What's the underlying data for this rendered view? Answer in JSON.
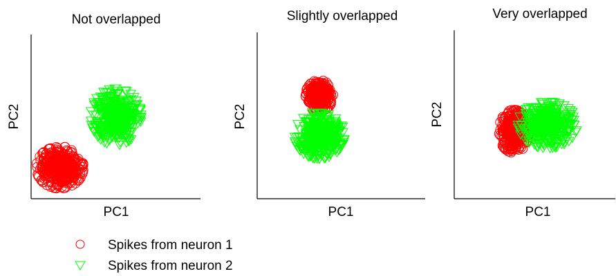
{
  "chart_data": [
    {
      "type": "scatter",
      "title": "Not overlapped",
      "xlabel": "PC1",
      "ylabel": "PC2",
      "xlim": [
        0,
        1
      ],
      "ylim": [
        0,
        1
      ],
      "series": [
        {
          "marker": "circle",
          "color": "#ff0000",
          "center": [
            0.17,
            0.19
          ],
          "spread": [
            0.06,
            0.055
          ],
          "n": 420
        },
        {
          "marker": "triangle-down",
          "color": "#00ff00",
          "center": [
            0.5,
            0.5
          ],
          "spread": [
            0.065,
            0.075
          ],
          "n": 420
        }
      ]
    },
    {
      "type": "scatter",
      "title": "Slightly overlapped",
      "xlabel": "PC1",
      "ylabel": "PC2",
      "xlim": [
        0,
        1
      ],
      "ylim": [
        0,
        1
      ],
      "series": [
        {
          "marker": "circle",
          "color": "#ff0000",
          "center": [
            0.37,
            0.62
          ],
          "spread": [
            0.035,
            0.04
          ],
          "n": 300
        },
        {
          "marker": "triangle-down",
          "color": "#00ff00",
          "center": [
            0.37,
            0.38
          ],
          "spread": [
            0.065,
            0.06
          ],
          "n": 420
        }
      ]
    },
    {
      "type": "scatter",
      "title": "Very overlapped",
      "xlabel": "PC1",
      "ylabel": "PC2",
      "xlim": [
        0,
        1
      ],
      "ylim": [
        0,
        1
      ],
      "series": [
        {
          "marker": "circle",
          "color": "#ff0000",
          "center": [
            0.37,
            0.4
          ],
          "spread": [
            0.04,
            0.055
          ],
          "n": 300
        },
        {
          "marker": "triangle-down",
          "color": "#00ff00",
          "center": [
            0.58,
            0.44
          ],
          "spread": [
            0.08,
            0.06
          ],
          "n": 420
        }
      ]
    }
  ],
  "legend": {
    "placement": "bottom-left",
    "entries": [
      {
        "label": "Spikes from neuron 1",
        "marker": "circle",
        "color": "#ff0000"
      },
      {
        "label": "Spikes from neuron 2",
        "marker": "triangle-down",
        "color": "#00ff00"
      }
    ]
  }
}
